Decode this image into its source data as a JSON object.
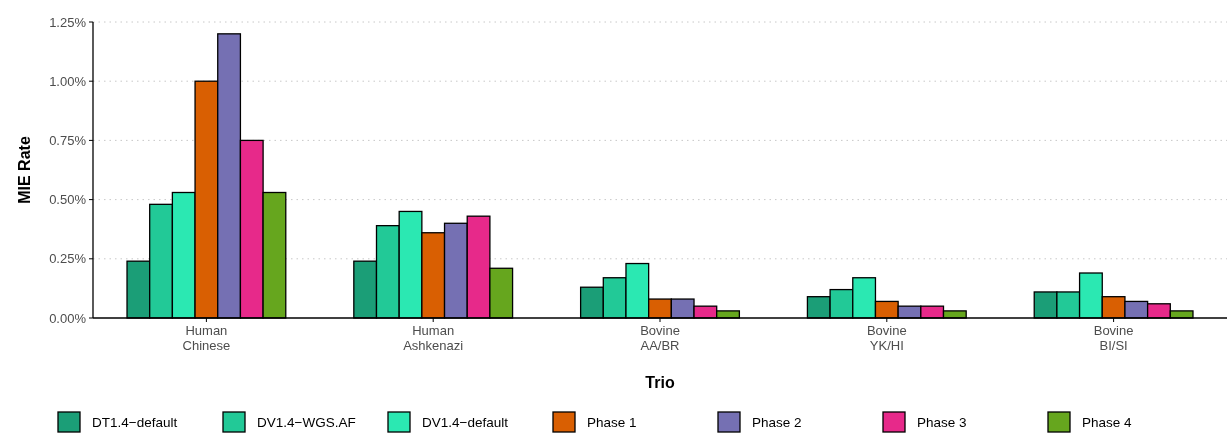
{
  "chart_data": {
    "type": "bar",
    "xlabel": "Trio",
    "ylabel": "MIE Rate",
    "categories": [
      "Human\nChinese",
      "Human\nAshkenazi",
      "Bovine\nAA/BR",
      "Bovine\nYK/HI",
      "Bovine\nBI/SI"
    ],
    "series": [
      {
        "name": "DT1.4−default",
        "color": "#1b9e77",
        "values": [
          0.24,
          0.24,
          0.13,
          0.09,
          0.11
        ]
      },
      {
        "name": "DV1.4−WGS.AF",
        "color": "#22c997",
        "values": [
          0.48,
          0.39,
          0.17,
          0.12,
          0.11
        ]
      },
      {
        "name": "DV1.4−default",
        "color": "#2be8b2",
        "values": [
          0.53,
          0.45,
          0.23,
          0.17,
          0.19
        ]
      },
      {
        "name": "Phase 1",
        "color": "#d95f02",
        "values": [
          1.0,
          0.36,
          0.08,
          0.07,
          0.09
        ]
      },
      {
        "name": "Phase 2",
        "color": "#7570b3",
        "values": [
          1.2,
          0.4,
          0.08,
          0.05,
          0.07
        ]
      },
      {
        "name": "Phase 3",
        "color": "#e7298a",
        "values": [
          0.75,
          0.43,
          0.05,
          0.05,
          0.06
        ]
      },
      {
        "name": "Phase 4",
        "color": "#66a61e",
        "values": [
          0.53,
          0.21,
          0.03,
          0.03,
          0.03
        ]
      }
    ],
    "ylim": [
      0,
      1.25
    ],
    "yticks": [
      {
        "value": 0,
        "label": "0.00%"
      },
      {
        "value": 0.25,
        "label": "0.25%"
      },
      {
        "value": 0.5,
        "label": "0.50%"
      },
      {
        "value": 0.75,
        "label": "0.75%"
      },
      {
        "value": 1,
        "label": "1.00%"
      },
      {
        "value": 1.25,
        "label": "1.25%"
      }
    ],
    "grid": "y",
    "legend": "bottom"
  }
}
